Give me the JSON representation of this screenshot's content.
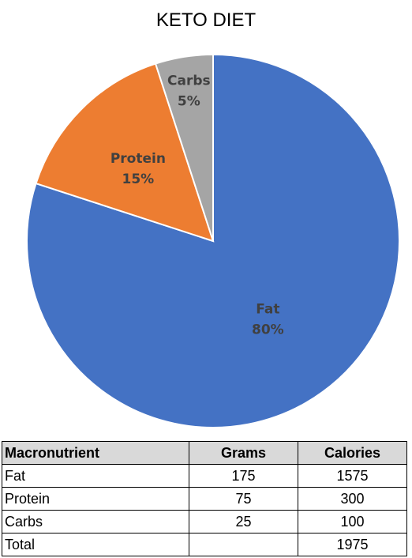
{
  "chart_data": {
    "type": "pie",
    "title": "KETO DIET",
    "categories": [
      "Fat",
      "Protein",
      "Carbs"
    ],
    "values": [
      80,
      15,
      5
    ],
    "value_labels": [
      "80%",
      "15%",
      "5%"
    ],
    "colors": [
      "#4472C4",
      "#ED7D31",
      "#A5A5A5"
    ],
    "start_angle": "12 o'clock",
    "direction": "clockwise"
  },
  "table": {
    "headers": [
      "Macronutrient",
      "Grams",
      "Calories"
    ],
    "rows": [
      [
        "Fat",
        "175",
        "1575"
      ],
      [
        "Protein",
        "75",
        "300"
      ],
      [
        "Carbs",
        "25",
        "100"
      ],
      [
        "Total",
        "",
        "1975"
      ]
    ]
  }
}
